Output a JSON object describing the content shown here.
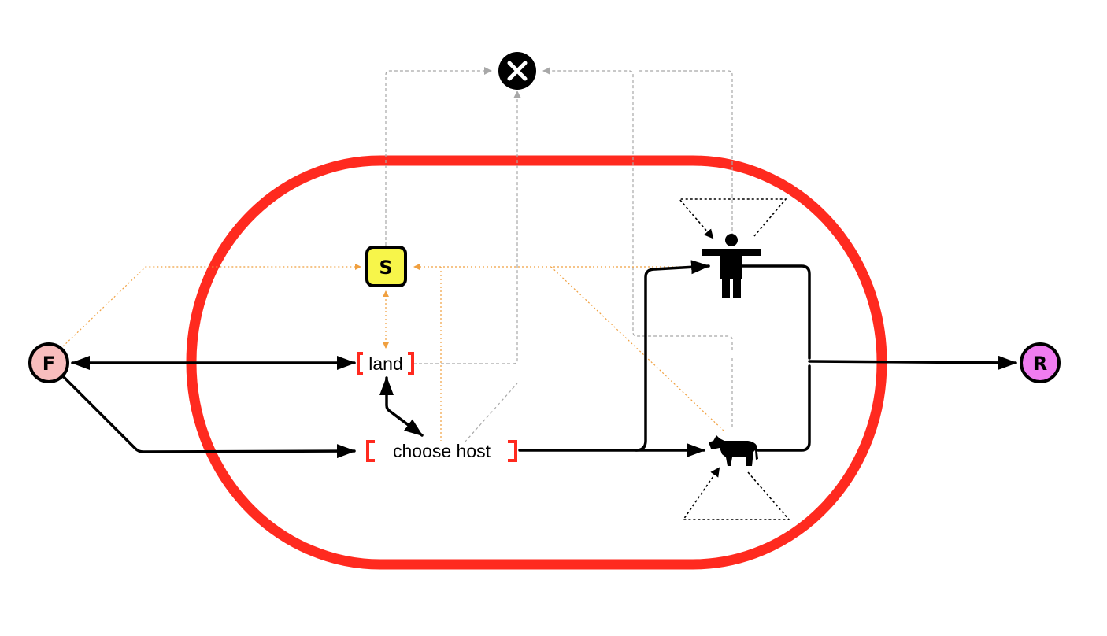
{
  "diagram": {
    "nodes": {
      "f": {
        "label": "F",
        "fill": "#f8bdbd"
      },
      "r": {
        "label": "R",
        "fill": "#f07cf0"
      },
      "s": {
        "label": "S",
        "fill": "#f7f54a"
      },
      "death": {
        "label": "×",
        "fill": "#000000"
      },
      "land": {
        "label": "land"
      },
      "choose_host": {
        "label": "choose host"
      }
    },
    "icons": {
      "human": "human-figure-icon",
      "cow": "cow-icon"
    },
    "colors": {
      "compartment": "#ff2a1f",
      "bracket": "#ff2a1f",
      "feedback": "#f0a040",
      "mortality": "#b0b0b0",
      "flow": "#000000"
    }
  }
}
